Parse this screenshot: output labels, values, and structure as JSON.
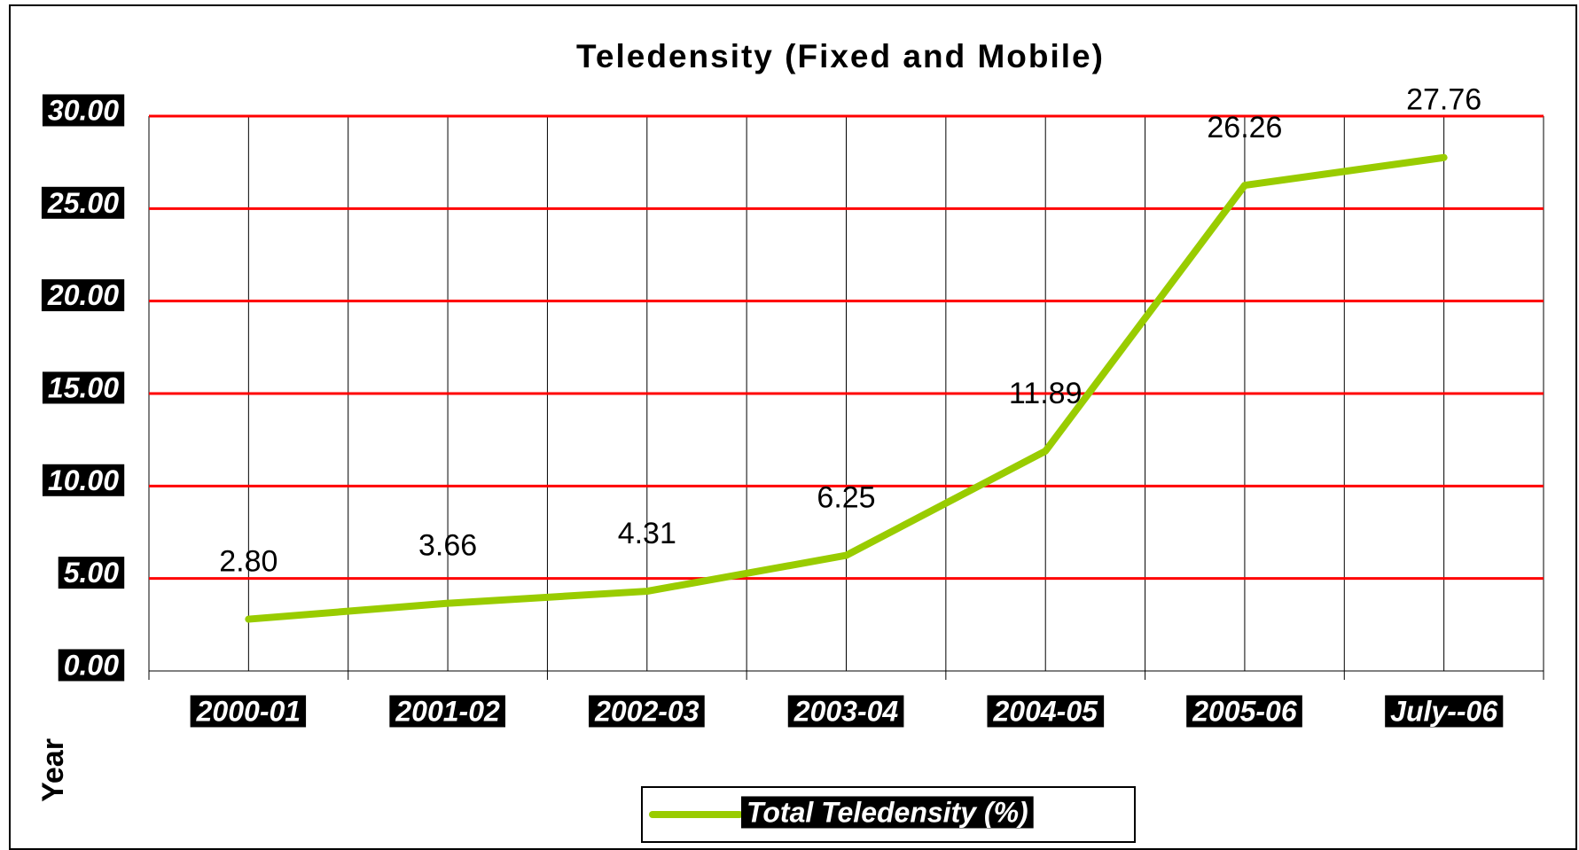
{
  "chart_data": {
    "type": "line",
    "title": "Teledensity (Fixed and Mobile)",
    "x_axis_label": "Year",
    "categories": [
      "2000-01",
      "2001-02",
      "2002-03",
      "2003-04",
      "2004-05",
      "2005-06",
      "July--06"
    ],
    "series": [
      {
        "name": "Total Teledensity (%)",
        "color": "#99cc00",
        "values": [
          2.8,
          3.66,
          4.31,
          6.25,
          11.89,
          26.26,
          27.76
        ],
        "value_labels": [
          "2.80",
          "3.66",
          "4.31",
          "6.25",
          "11.89",
          "26.26",
          "27.76"
        ]
      }
    ],
    "ylim": [
      0,
      30
    ],
    "yticks": [
      {
        "value": 0,
        "label": "0.00"
      },
      {
        "value": 5,
        "label": "5.00"
      },
      {
        "value": 10,
        "label": "10.00"
      },
      {
        "value": 15,
        "label": "15.00"
      },
      {
        "value": 20,
        "label": "20.00"
      },
      {
        "value": 25,
        "label": "25.00"
      },
      {
        "value": 30,
        "label": "30.00"
      }
    ],
    "grid": true,
    "grid_color": "#ff0000",
    "legend": "bottom"
  }
}
